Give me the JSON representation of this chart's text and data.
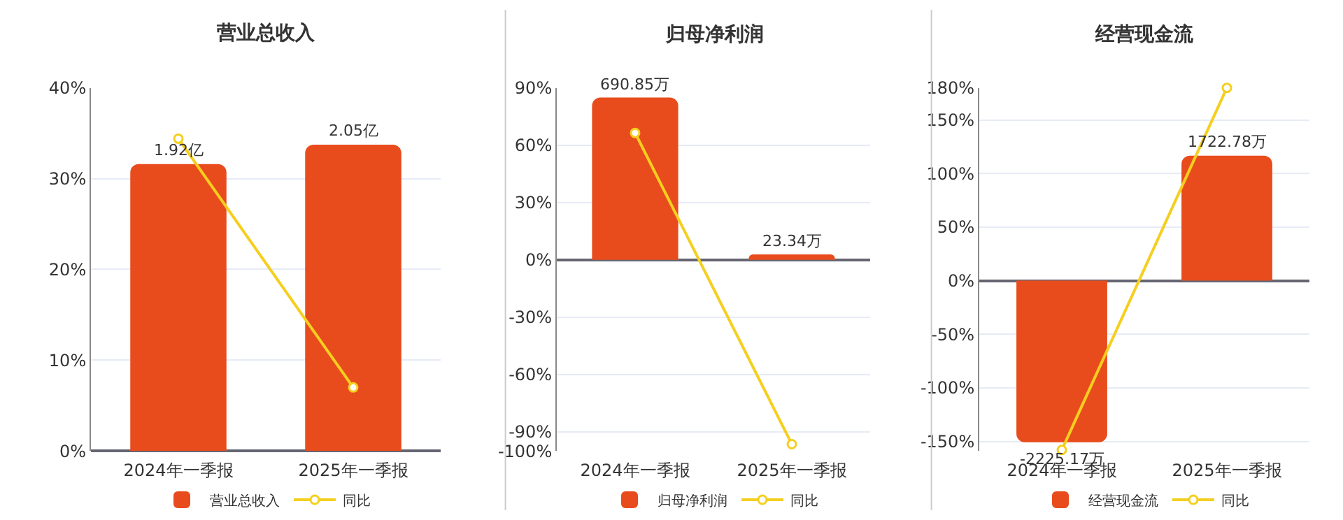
{
  "chart_data": [
    {
      "type": "bar",
      "title": "营业总收入",
      "categories": [
        "2024年一季报",
        "2025年一季报"
      ],
      "series": [
        {
          "name": "营业总收入",
          "color": "#e84c1c",
          "values": [
            1.92,
            2.05
          ],
          "value_labels": [
            "1.92亿",
            "2.05亿"
          ],
          "axis": "y2"
        },
        {
          "name": "同比",
          "type": "line",
          "color": "#f5cf1f",
          "values": [
            34.4,
            7.0
          ]
        }
      ],
      "ylim": [
        0,
        40
      ],
      "yticks": [
        {
          "value": 0,
          "label": "0%"
        },
        {
          "value": 10,
          "label": "10%"
        },
        {
          "value": 20,
          "label": "20%"
        },
        {
          "value": 30,
          "label": "30%"
        },
        {
          "value": 40,
          "label": "40%"
        }
      ],
      "y2lim": [
        0,
        2.43
      ],
      "grid": "y",
      "legend": "bottom",
      "marker": "circle"
    },
    {
      "type": "bar",
      "title": "归母净利润",
      "categories": [
        "2024年一季报",
        "2025年一季报"
      ],
      "series": [
        {
          "name": "归母净利润",
          "color": "#e84c1c",
          "values": [
            690.85,
            23.34
          ],
          "value_labels": [
            "690.85万",
            "23.34万"
          ],
          "axis": "y2"
        },
        {
          "name": "同比",
          "type": "line",
          "color": "#f5cf1f",
          "values": [
            66.4,
            -96.4
          ]
        }
      ],
      "ylim": [
        -100,
        90
      ],
      "yticks": [
        {
          "value": -100,
          "label": "-100%"
        },
        {
          "value": -90,
          "label": "-90%"
        },
        {
          "value": -60,
          "label": "-60%"
        },
        {
          "value": -30,
          "label": "-30%"
        },
        {
          "value": 0,
          "label": "0%"
        },
        {
          "value": 30,
          "label": "30%"
        },
        {
          "value": 60,
          "label": "60%"
        },
        {
          "value": 90,
          "label": "90%"
        }
      ],
      "y2lim": [
        -813,
        732
      ],
      "grid": "y",
      "legend": "bottom",
      "marker": "circle"
    },
    {
      "type": "bar",
      "title": "经营现金流",
      "categories": [
        "2024年一季报",
        "2025年一季报"
      ],
      "series": [
        {
          "name": "经营现金流",
          "color": "#e84c1c",
          "values": [
            -2225.17,
            1722.78
          ],
          "value_labels": [
            "-2225.17万",
            "1722.78万"
          ],
          "axis": "y2"
        },
        {
          "name": "同比",
          "type": "line",
          "color": "#f5cf1f",
          "values": [
            -158,
            180
          ]
        }
      ],
      "ylim": [
        -159,
        180
      ],
      "yticks": [
        {
          "value": -150,
          "label": "-150%"
        },
        {
          "value": -100,
          "label": "-100%"
        },
        {
          "value": -50,
          "label": "-50%"
        },
        {
          "value": 0,
          "label": "0%"
        },
        {
          "value": 50,
          "label": "50%"
        },
        {
          "value": 100,
          "label": "100%"
        },
        {
          "value": 150,
          "label": "150%"
        },
        {
          "value": 180,
          "label": "180%"
        }
      ],
      "y2lim": [
        -2347,
        2657
      ],
      "grid": "y",
      "legend": "bottom",
      "marker": "circle"
    }
  ]
}
